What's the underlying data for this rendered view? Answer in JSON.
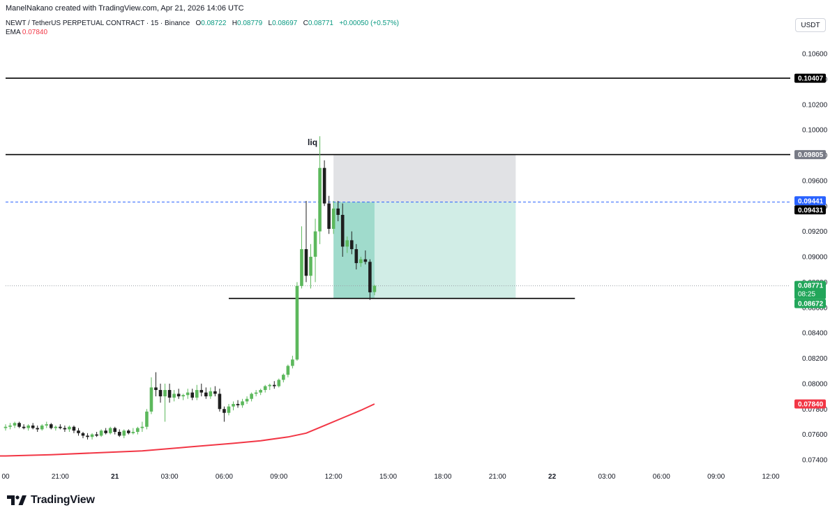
{
  "header": {
    "attribution": "ManelNakano created with TradingView.com, Apr 21, 2026 14:06 UTC"
  },
  "legend": {
    "symbol": "NEWT / TetherUS PERPETUAL CONTRACT · 15 · Binance",
    "open_label": "O",
    "open": "0.08722",
    "high_label": "H",
    "high": "0.08779",
    "low_label": "L",
    "low": "0.08697",
    "close_label": "C",
    "close": "0.08771",
    "change": "+0.00050 (+0.57%)",
    "ema_label": "EMA",
    "ema_value": "0.07840"
  },
  "currency": "USDT",
  "logo": {
    "wordmark": "TradingView"
  },
  "colors": {
    "up": "#5cb85c",
    "down": "#1e1e1e",
    "ema": "#f23645",
    "target_zone": "#b9e3d8",
    "stop_zone": "#d7d8dc",
    "dash_line": "#2962ff",
    "price_label_up": "#22a65a",
    "axis_text": "#131722"
  },
  "chart_data": {
    "type": "candlestick",
    "interval": "15",
    "ylim": [
      0.073,
      0.109
    ],
    "y_ticks": [
      "0.07400",
      "0.07600",
      "0.07800",
      "0.08000",
      "0.08200",
      "0.08400",
      "0.08600",
      "0.08800",
      "0.09000",
      "0.09200",
      "0.09400",
      "0.09600",
      "0.09800",
      "0.10000",
      "0.10200",
      "0.10400",
      "0.10600"
    ],
    "x_ticks": [
      {
        "label": "00",
        "x": 0
      },
      {
        "label": "21:00",
        "x": 12
      },
      {
        "label": "21",
        "x": 24
      },
      {
        "label": "03:00",
        "x": 36
      },
      {
        "label": "06:00",
        "x": 48
      },
      {
        "label": "09:00",
        "x": 60
      },
      {
        "label": "12:00",
        "x": 72
      },
      {
        "label": "15:00",
        "x": 84
      },
      {
        "label": "18:00",
        "x": 96
      },
      {
        "label": "21:00",
        "x": 108
      },
      {
        "label": "22",
        "x": 120
      },
      {
        "label": "03:00",
        "x": 132
      },
      {
        "label": "06:00",
        "x": 144
      },
      {
        "label": "09:00",
        "x": 156
      },
      {
        "label": "12:00",
        "x": 168
      }
    ],
    "candles": [
      {
        "x": 0,
        "o": 0.0765,
        "h": 0.0768,
        "l": 0.0763,
        "c": 0.0766
      },
      {
        "x": 1,
        "o": 0.0766,
        "h": 0.0769,
        "l": 0.0764,
        "c": 0.0767
      },
      {
        "x": 2,
        "o": 0.0767,
        "h": 0.077,
        "l": 0.0765,
        "c": 0.0769
      },
      {
        "x": 3,
        "o": 0.0769,
        "h": 0.077,
        "l": 0.0765,
        "c": 0.0766
      },
      {
        "x": 4,
        "o": 0.0766,
        "h": 0.0768,
        "l": 0.0764,
        "c": 0.0765
      },
      {
        "x": 5,
        "o": 0.0765,
        "h": 0.0768,
        "l": 0.0763,
        "c": 0.0767
      },
      {
        "x": 6,
        "o": 0.0767,
        "h": 0.0769,
        "l": 0.0764,
        "c": 0.0765
      },
      {
        "x": 7,
        "o": 0.0765,
        "h": 0.0767,
        "l": 0.0762,
        "c": 0.0764
      },
      {
        "x": 8,
        "o": 0.0764,
        "h": 0.0768,
        "l": 0.0763,
        "c": 0.0767
      },
      {
        "x": 9,
        "o": 0.0767,
        "h": 0.077,
        "l": 0.0765,
        "c": 0.0768
      },
      {
        "x": 10,
        "o": 0.0768,
        "h": 0.0769,
        "l": 0.0764,
        "c": 0.0765
      },
      {
        "x": 11,
        "o": 0.0765,
        "h": 0.0767,
        "l": 0.0763,
        "c": 0.0766
      },
      {
        "x": 12,
        "o": 0.0766,
        "h": 0.0768,
        "l": 0.0764,
        "c": 0.0765
      },
      {
        "x": 13,
        "o": 0.0765,
        "h": 0.0767,
        "l": 0.0762,
        "c": 0.0764
      },
      {
        "x": 14,
        "o": 0.0764,
        "h": 0.0767,
        "l": 0.0762,
        "c": 0.0766
      },
      {
        "x": 15,
        "o": 0.0766,
        "h": 0.0767,
        "l": 0.0761,
        "c": 0.0763
      },
      {
        "x": 16,
        "o": 0.0763,
        "h": 0.0765,
        "l": 0.0759,
        "c": 0.0761
      },
      {
        "x": 17,
        "o": 0.0761,
        "h": 0.0762,
        "l": 0.0757,
        "c": 0.0759
      },
      {
        "x": 18,
        "o": 0.0759,
        "h": 0.0761,
        "l": 0.0756,
        "c": 0.0758
      },
      {
        "x": 19,
        "o": 0.0758,
        "h": 0.0761,
        "l": 0.0756,
        "c": 0.076
      },
      {
        "x": 20,
        "o": 0.076,
        "h": 0.0762,
        "l": 0.0758,
        "c": 0.0759
      },
      {
        "x": 21,
        "o": 0.0759,
        "h": 0.0764,
        "l": 0.0758,
        "c": 0.0763
      },
      {
        "x": 22,
        "o": 0.0763,
        "h": 0.0765,
        "l": 0.076,
        "c": 0.0761
      },
      {
        "x": 23,
        "o": 0.0761,
        "h": 0.0766,
        "l": 0.076,
        "c": 0.0765
      },
      {
        "x": 24,
        "o": 0.0765,
        "h": 0.0766,
        "l": 0.076,
        "c": 0.0762
      },
      {
        "x": 25,
        "o": 0.0762,
        "h": 0.0764,
        "l": 0.0758,
        "c": 0.0759
      },
      {
        "x": 26,
        "o": 0.0759,
        "h": 0.0764,
        "l": 0.0757,
        "c": 0.0763
      },
      {
        "x": 27,
        "o": 0.0763,
        "h": 0.0764,
        "l": 0.076,
        "c": 0.0761
      },
      {
        "x": 28,
        "o": 0.0761,
        "h": 0.0765,
        "l": 0.076,
        "c": 0.0762
      },
      {
        "x": 29,
        "o": 0.0762,
        "h": 0.0766,
        "l": 0.076,
        "c": 0.0765
      },
      {
        "x": 30,
        "o": 0.0765,
        "h": 0.077,
        "l": 0.0762,
        "c": 0.0766
      },
      {
        "x": 31,
        "o": 0.0766,
        "h": 0.078,
        "l": 0.0764,
        "c": 0.0778
      },
      {
        "x": 32,
        "o": 0.0778,
        "h": 0.0805,
        "l": 0.0776,
        "c": 0.0797
      },
      {
        "x": 33,
        "o": 0.0797,
        "h": 0.0809,
        "l": 0.079,
        "c": 0.0795
      },
      {
        "x": 34,
        "o": 0.0795,
        "h": 0.08,
        "l": 0.0785,
        "c": 0.079
      },
      {
        "x": 35,
        "o": 0.079,
        "h": 0.08,
        "l": 0.077,
        "c": 0.0795
      },
      {
        "x": 36,
        "o": 0.0795,
        "h": 0.08,
        "l": 0.0785,
        "c": 0.0789
      },
      {
        "x": 37,
        "o": 0.0789,
        "h": 0.0795,
        "l": 0.0786,
        "c": 0.0792
      },
      {
        "x": 38,
        "o": 0.0792,
        "h": 0.0796,
        "l": 0.0788,
        "c": 0.079
      },
      {
        "x": 39,
        "o": 0.079,
        "h": 0.0792,
        "l": 0.0787,
        "c": 0.0791
      },
      {
        "x": 40,
        "o": 0.0791,
        "h": 0.0796,
        "l": 0.0788,
        "c": 0.0793
      },
      {
        "x": 41,
        "o": 0.0793,
        "h": 0.0796,
        "l": 0.0787,
        "c": 0.0789
      },
      {
        "x": 42,
        "o": 0.0789,
        "h": 0.0799,
        "l": 0.0787,
        "c": 0.0795
      },
      {
        "x": 43,
        "o": 0.0795,
        "h": 0.08,
        "l": 0.079,
        "c": 0.0793
      },
      {
        "x": 44,
        "o": 0.0793,
        "h": 0.0797,
        "l": 0.0788,
        "c": 0.079
      },
      {
        "x": 45,
        "o": 0.079,
        "h": 0.0797,
        "l": 0.0788,
        "c": 0.0794
      },
      {
        "x": 46,
        "o": 0.0794,
        "h": 0.0798,
        "l": 0.079,
        "c": 0.0792
      },
      {
        "x": 47,
        "o": 0.0792,
        "h": 0.0796,
        "l": 0.0778,
        "c": 0.078
      },
      {
        "x": 48,
        "o": 0.078,
        "h": 0.0782,
        "l": 0.077,
        "c": 0.0777
      },
      {
        "x": 49,
        "o": 0.0777,
        "h": 0.0784,
        "l": 0.0775,
        "c": 0.0782
      },
      {
        "x": 50,
        "o": 0.0782,
        "h": 0.0786,
        "l": 0.0779,
        "c": 0.0784
      },
      {
        "x": 51,
        "o": 0.0784,
        "h": 0.0787,
        "l": 0.0781,
        "c": 0.0783
      },
      {
        "x": 52,
        "o": 0.0783,
        "h": 0.0788,
        "l": 0.0781,
        "c": 0.0786
      },
      {
        "x": 53,
        "o": 0.0786,
        "h": 0.079,
        "l": 0.0784,
        "c": 0.0788
      },
      {
        "x": 54,
        "o": 0.0788,
        "h": 0.0793,
        "l": 0.0786,
        "c": 0.0792
      },
      {
        "x": 55,
        "o": 0.0792,
        "h": 0.0795,
        "l": 0.079,
        "c": 0.0793
      },
      {
        "x": 56,
        "o": 0.0793,
        "h": 0.0796,
        "l": 0.0791,
        "c": 0.0795
      },
      {
        "x": 57,
        "o": 0.0795,
        "h": 0.0799,
        "l": 0.0793,
        "c": 0.0798
      },
      {
        "x": 58,
        "o": 0.0798,
        "h": 0.08,
        "l": 0.0795,
        "c": 0.0799
      },
      {
        "x": 59,
        "o": 0.0799,
        "h": 0.0802,
        "l": 0.0796,
        "c": 0.0798
      },
      {
        "x": 60,
        "o": 0.0798,
        "h": 0.0804,
        "l": 0.0797,
        "c": 0.0803
      },
      {
        "x": 61,
        "o": 0.0803,
        "h": 0.0808,
        "l": 0.0801,
        "c": 0.0807
      },
      {
        "x": 62,
        "o": 0.0807,
        "h": 0.0815,
        "l": 0.0805,
        "c": 0.0814
      },
      {
        "x": 63,
        "o": 0.0814,
        "h": 0.0822,
        "l": 0.0812,
        "c": 0.0819
      },
      {
        "x": 64,
        "o": 0.0819,
        "h": 0.088,
        "l": 0.0818,
        "c": 0.0877
      },
      {
        "x": 65,
        "o": 0.0877,
        "h": 0.0924,
        "l": 0.0875,
        "c": 0.0906
      },
      {
        "x": 66,
        "o": 0.0906,
        "h": 0.0944,
        "l": 0.088,
        "c": 0.0885
      },
      {
        "x": 67,
        "o": 0.0885,
        "h": 0.091,
        "l": 0.0875,
        "c": 0.09
      },
      {
        "x": 68,
        "o": 0.09,
        "h": 0.093,
        "l": 0.088,
        "c": 0.092
      },
      {
        "x": 69,
        "o": 0.092,
        "h": 0.0995,
        "l": 0.091,
        "c": 0.097
      },
      {
        "x": 70,
        "o": 0.097,
        "h": 0.0976,
        "l": 0.094,
        "c": 0.0942
      },
      {
        "x": 71,
        "o": 0.0942,
        "h": 0.0948,
        "l": 0.0918,
        "c": 0.0922
      },
      {
        "x": 72,
        "o": 0.0922,
        "h": 0.0944,
        "l": 0.0918,
        "c": 0.0938
      },
      {
        "x": 73,
        "o": 0.0938,
        "h": 0.0944,
        "l": 0.0928,
        "c": 0.0933
      },
      {
        "x": 74,
        "o": 0.0933,
        "h": 0.0942,
        "l": 0.09,
        "c": 0.0908
      },
      {
        "x": 75,
        "o": 0.0908,
        "h": 0.0916,
        "l": 0.0903,
        "c": 0.0913
      },
      {
        "x": 76,
        "o": 0.0913,
        "h": 0.092,
        "l": 0.0902,
        "c": 0.0906
      },
      {
        "x": 77,
        "o": 0.0906,
        "h": 0.091,
        "l": 0.089,
        "c": 0.0895
      },
      {
        "x": 78,
        "o": 0.0895,
        "h": 0.09,
        "l": 0.0892,
        "c": 0.0898
      },
      {
        "x": 79,
        "o": 0.0898,
        "h": 0.0905,
        "l": 0.0894,
        "c": 0.0896
      },
      {
        "x": 80,
        "o": 0.0896,
        "h": 0.0898,
        "l": 0.0866,
        "c": 0.0872
      },
      {
        "x": 81,
        "o": 0.08722,
        "h": 0.08779,
        "l": 0.08697,
        "c": 0.08771
      }
    ],
    "ema": {
      "name": "EMA",
      "points": [
        [
          0,
          0.0743
        ],
        [
          10,
          0.0744
        ],
        [
          20,
          0.07455
        ],
        [
          30,
          0.0747
        ],
        [
          40,
          0.075
        ],
        [
          50,
          0.0753
        ],
        [
          56,
          0.0755
        ],
        [
          62,
          0.0758
        ],
        [
          66,
          0.0761
        ],
        [
          70,
          0.0767
        ],
        [
          74,
          0.0773
        ],
        [
          78,
          0.0779
        ],
        [
          81,
          0.0784
        ]
      ]
    },
    "levels": [
      {
        "price": 0.10407,
        "label": "0.10407",
        "x_from": -1,
        "x_to": 170,
        "style": "solid"
      },
      {
        "price": 0.09805,
        "label": "0.09805",
        "x_from": -1,
        "x_to": 170,
        "style": "solid"
      },
      {
        "price": 0.08672,
        "label": "0.08672",
        "x_from": 49,
        "x_to": 125,
        "style": "solid"
      },
      {
        "price": 0.09431,
        "label": "0.09431",
        "x_from": -1,
        "x_to": 170,
        "style": "dashed"
      }
    ],
    "position_tool": {
      "x_from": 72,
      "x_to": 112,
      "entry": 0.09431,
      "stop": 0.09805,
      "target": 0.08672,
      "filled_to_x": 81
    },
    "annotations": [
      {
        "text": "liq",
        "x": 68,
        "price": 0.0988
      }
    ],
    "price_labels": [
      {
        "text": "0.10407",
        "price": 0.10407,
        "bg": "#000000",
        "fg": "#ffffff"
      },
      {
        "text": "0.09805",
        "price": 0.09805,
        "bg": "#787b86",
        "fg": "#ffffff"
      },
      {
        "text": "0.09441",
        "price": 0.09441,
        "bg": "#2962ff",
        "fg": "#ffffff"
      },
      {
        "text": "0.09431",
        "price": 0.09431,
        "bg": "#000000",
        "fg": "#ffffff"
      },
      {
        "text": "0.08771",
        "sub": "08:25",
        "price": 0.08771,
        "bg": "#22a65a",
        "fg": "#ffffff"
      },
      {
        "text": "0.08672",
        "price": 0.08672,
        "bg": "#22a65a",
        "fg": "#ffffff"
      },
      {
        "text": "0.07840",
        "price": 0.0784,
        "bg": "#f23645",
        "fg": "#ffffff"
      }
    ]
  }
}
